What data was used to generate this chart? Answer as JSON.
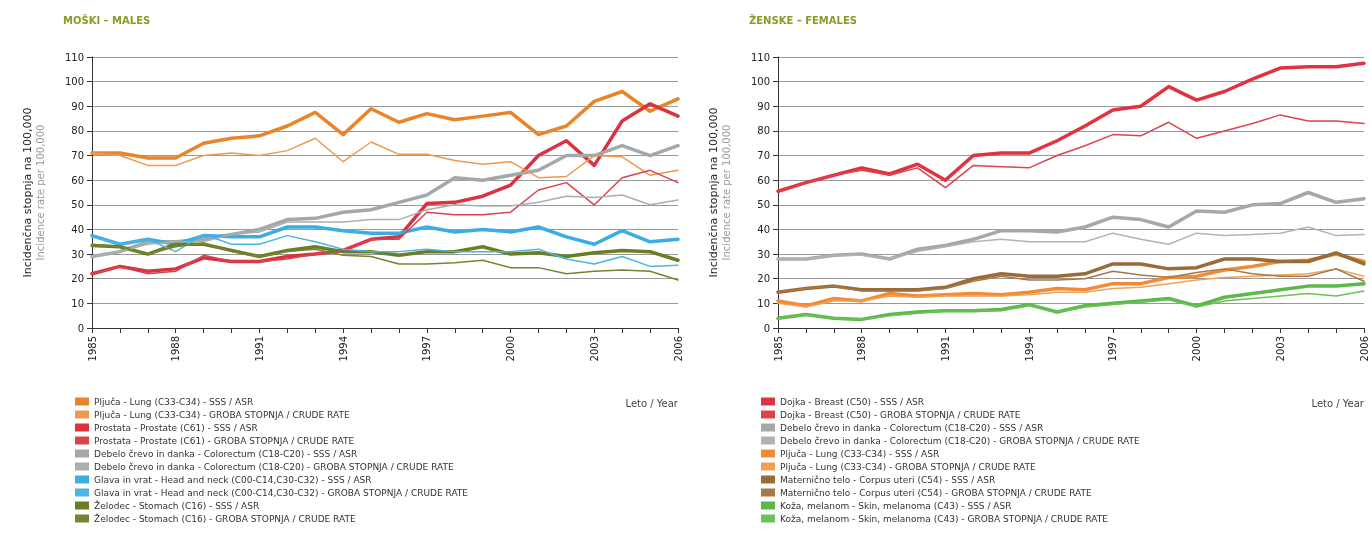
{
  "chart_data": [
    {
      "type": "line",
      "title": "MOŠKI – MALES",
      "ylabel": "Incidenčna stopnja na 100,000\nIncidence rate per 100,000",
      "xlabel": "Leto / Year",
      "x": [
        1985,
        1986,
        1987,
        1988,
        1989,
        1990,
        1991,
        1992,
        1993,
        1994,
        1995,
        1996,
        1997,
        1998,
        1999,
        2000,
        2001,
        2002,
        2003,
        2004,
        2005,
        2006
      ],
      "xlim": [
        1985,
        2006
      ],
      "xticks": [
        1985,
        {
          "value": 1986,
          "label": null
        },
        {
          "value": 1987,
          "label": null
        },
        1988,
        {
          "value": 1989,
          "label": null
        },
        {
          "value": 1990,
          "label": null
        },
        1991,
        {
          "value": 1992,
          "label": null
        },
        {
          "value": 1993,
          "label": null
        },
        1994,
        {
          "value": 1995,
          "label": null
        },
        {
          "value": 1996,
          "label": null
        },
        1997,
        {
          "value": 1998,
          "label": null
        },
        {
          "value": 1999,
          "label": null
        },
        2000,
        {
          "value": 2001,
          "label": null
        },
        {
          "value": 2002,
          "label": null
        },
        2003,
        {
          "value": 2004,
          "label": null
        },
        {
          "value": 2005,
          "label": null
        },
        2006
      ],
      "ylim": [
        0,
        110
      ],
      "yticks": [
        0,
        10,
        20,
        30,
        40,
        50,
        60,
        70,
        80,
        90,
        100,
        110
      ],
      "grid": "y",
      "legend": "bottom",
      "marker": "none",
      "series": [
        {
          "name": "Pljuča - Lung (C33-C34) - SSS / ASR",
          "color": "#e8852a",
          "values": [
            71,
            71,
            69,
            69,
            75,
            77,
            78,
            82,
            87.5,
            78.5,
            89,
            83.5,
            87,
            84.5,
            86,
            87.5,
            78.5,
            82,
            92,
            96,
            88,
            93
          ]
        },
        {
          "name": "Pljuča - Lung (C33-C34) - GROBA STOPNJA / CRUDE RATE",
          "color": "#eb9a50",
          "values": [
            71,
            70,
            66,
            66,
            70,
            71,
            70,
            72,
            77,
            67.5,
            75.5,
            70.5,
            70.5,
            68,
            66.5,
            67.5,
            61,
            61.5,
            70,
            69.5,
            62,
            64
          ]
        },
        {
          "name": "Prostata - Prostate (C61) - SSS / ASR",
          "color": "#d9333f",
          "values": [
            22,
            25,
            23,
            24,
            28.5,
            27,
            27,
            29,
            30,
            31.5,
            36,
            37,
            50.5,
            51,
            53.5,
            58,
            70,
            76,
            66,
            84,
            91,
            86
          ]
        },
        {
          "name": "Prostata - Prostate (C61) - GROBA STOPNJA / CRUDE RATE",
          "color": "#d4454f",
          "values": [
            22,
            25,
            22,
            23,
            29.5,
            27,
            27,
            28,
            30,
            31,
            36,
            36,
            47,
            46,
            46,
            47,
            56,
            59,
            50,
            61,
            64,
            59
          ]
        },
        {
          "name": "Debelo črevo in danka - Colorectum (C18-C20) - SSS / ASR",
          "color": "#a4a8a9",
          "values": [
            29,
            31,
            35,
            35,
            36,
            38,
            40,
            44,
            44.5,
            47,
            48,
            51,
            54,
            61,
            60,
            62,
            64,
            70,
            70,
            74,
            70,
            74
          ]
        },
        {
          "name": "Debelo črevo in danka - Colorectum (C18-C20) - GROBA STOPNJA / CRUDE RATE",
          "color": "#abafb0",
          "values": [
            29,
            31,
            34,
            35,
            35,
            38,
            39,
            43,
            43,
            43,
            44,
            44,
            48,
            50,
            49.5,
            49.5,
            51,
            53.5,
            53,
            54,
            50,
            52
          ]
        },
        {
          "name": "Glava in vrat - Head and neck (C00-C14,C30-C32) - SSS / ASR",
          "color": "#3aaee0",
          "values": [
            37.5,
            34,
            36,
            34,
            37.5,
            37,
            37,
            41,
            41,
            39.5,
            38.5,
            38.5,
            41,
            39,
            40,
            39,
            41,
            37,
            34,
            39.5,
            35,
            36
          ]
        },
        {
          "name": "Glava in vrat - Head and neck (C00-C14,C30-C32) - GROBA STOPNJA / CRUDE RATE",
          "color": "#4bb5e3",
          "values": [
            37,
            34,
            36,
            31,
            38,
            34,
            34,
            37.5,
            35,
            32,
            31,
            31,
            32,
            31,
            31,
            31,
            32,
            28,
            26,
            29,
            25,
            25.5
          ]
        },
        {
          "name": "Želodec - Stomach (C16) - SSS / ASR",
          "color": "#6b7d25",
          "values": [
            33.5,
            33,
            30,
            34,
            34,
            31.5,
            29,
            31.5,
            33,
            31,
            31,
            29.5,
            31,
            31,
            33,
            30,
            30.5,
            29,
            30.5,
            31.5,
            31,
            27.5
          ]
        },
        {
          "name": "Želodec - Stomach (C16) - GROBA STOPNJA / CRUDE RATE",
          "color": "#738530",
          "values": [
            34,
            33,
            30,
            33,
            34.5,
            31,
            29,
            31,
            32,
            29.5,
            29,
            26,
            26,
            26.5,
            27.5,
            24.5,
            24.5,
            22,
            23,
            23.5,
            23,
            19.5
          ]
        }
      ]
    },
    {
      "type": "line",
      "title": "ŽENSKE – FEMALES",
      "ylabel": "Incidenčna stopnja na 100,000\nIncidence rate per 100,000",
      "xlabel": "Leto / Year",
      "x": [
        1985,
        1986,
        1987,
        1988,
        1989,
        1990,
        1991,
        1992,
        1993,
        1994,
        1995,
        1996,
        1997,
        1998,
        1999,
        2000,
        2001,
        2002,
        2003,
        2004,
        2005,
        2006
      ],
      "xlim": [
        1985,
        2006
      ],
      "xticks": [
        1985,
        {
          "value": 1986,
          "label": null
        },
        {
          "value": 1987,
          "label": null
        },
        1988,
        {
          "value": 1989,
          "label": null
        },
        {
          "value": 1990,
          "label": null
        },
        1991,
        {
          "value": 1992,
          "label": null
        },
        {
          "value": 1993,
          "label": null
        },
        1994,
        {
          "value": 1995,
          "label": null
        },
        {
          "value": 1996,
          "label": null
        },
        1997,
        {
          "value": 1998,
          "label": null
        },
        {
          "value": 1999,
          "label": null
        },
        2000,
        {
          "value": 2001,
          "label": null
        },
        {
          "value": 2002,
          "label": null
        },
        2003,
        {
          "value": 2004,
          "label": null
        },
        {
          "value": 2005,
          "label": null
        },
        2006
      ],
      "ylim": [
        0,
        110
      ],
      "yticks": [
        0,
        10,
        20,
        30,
        40,
        50,
        60,
        70,
        80,
        90,
        100,
        110
      ],
      "grid": "y",
      "legend": "bottom",
      "marker": "none",
      "series": [
        {
          "name": "Dojka - Breast (C50) - SSS / ASR",
          "color": "#e0323f",
          "values": [
            55.5,
            59,
            62,
            65,
            62.5,
            66.5,
            60,
            70,
            71,
            71,
            76,
            82,
            88.5,
            90,
            98,
            92.5,
            96,
            101,
            105.5,
            106,
            106,
            107.5
          ]
        },
        {
          "name": "Dojka - Breast (C50) - GROBA STOPNJA / CRUDE RATE",
          "color": "#dc4450",
          "values": [
            55.5,
            59,
            62,
            64,
            62,
            65,
            57,
            66,
            65.5,
            65,
            70,
            74,
            78.5,
            78,
            83.5,
            77,
            80,
            83,
            86.5,
            84,
            84,
            83
          ]
        },
        {
          "name": "Debelo črevo in danka - Colorectum (C18-C20) - SSS / ASR",
          "color": "#a4a8a9",
          "values": [
            28,
            28,
            29.5,
            30,
            28,
            32,
            33.5,
            36,
            39.5,
            39.5,
            39,
            41,
            45,
            44,
            41,
            47.5,
            47,
            50,
            50.5,
            55,
            51,
            52.5
          ]
        },
        {
          "name": "Debelo črevo in danka - Colorectum (C18-C20) - GROBA STOPNJA / CRUDE RATE",
          "color": "#b0b4b5",
          "values": [
            28,
            28,
            29.5,
            29.5,
            28,
            31,
            33,
            35,
            36,
            35,
            35,
            35,
            38.5,
            36,
            34,
            38.5,
            37.5,
            38,
            38.5,
            41,
            37.5,
            38
          ]
        },
        {
          "name": "Pljuča - Lung (C33-C34) - SSS / ASR",
          "color": "#f08c35",
          "values": [
            11,
            9,
            12,
            11,
            14,
            13,
            13.5,
            14,
            13.5,
            14.5,
            16,
            15.5,
            18,
            18,
            20.5,
            21,
            23.5,
            25,
            27,
            27.5,
            30,
            27
          ]
        },
        {
          "name": "Pljuča - Lung (C33-C34) - GROBA STOPNJA / CRUDE RATE",
          "color": "#f2a055",
          "values": [
            10,
            8.5,
            11,
            11,
            13,
            12.5,
            13,
            13,
            13,
            13.5,
            14.5,
            14.5,
            16,
            16.5,
            18,
            19.5,
            20.5,
            21,
            21.5,
            22,
            24,
            21
          ]
        },
        {
          "name": "Maternično telo - Corpus uteri (C54) - SSS / ASR",
          "color": "#9a6a38",
          "values": [
            14.5,
            16,
            17,
            15.5,
            15.5,
            15.5,
            16.5,
            20,
            22,
            21,
            21,
            22,
            26,
            26,
            24,
            24.5,
            28,
            28,
            27,
            27,
            30.5,
            26
          ]
        },
        {
          "name": "Maternično telo - Corpus uteri (C54) - GROBA STOPNJA / CRUDE RATE",
          "color": "#a57849",
          "values": [
            14.5,
            16,
            17,
            15,
            15,
            15,
            16,
            19,
            21,
            19.5,
            19.5,
            20,
            23,
            21.5,
            20.5,
            22.5,
            24,
            22,
            21,
            21,
            24,
            19
          ]
        },
        {
          "name": "Koža, melanom - Skin, melanoma (C43) - SSS / ASR",
          "color": "#5cb84a",
          "values": [
            4,
            5.5,
            4,
            3.5,
            5.5,
            6.5,
            7,
            7,
            7.5,
            9.5,
            6.5,
            9,
            10,
            11,
            12,
            9,
            12.5,
            14,
            15.5,
            17,
            17,
            18
          ]
        },
        {
          "name": "Koža, melanom - Skin, melanoma (C43) - GROBA STOPNJA / CRUDE RATE",
          "color": "#6cc05a",
          "values": [
            4,
            5.5,
            4,
            3.5,
            5,
            6,
            7,
            7,
            7,
            9,
            6.5,
            8.5,
            9.5,
            10.5,
            11.5,
            8.5,
            11,
            12,
            13,
            14,
            13,
            15
          ]
        }
      ]
    }
  ]
}
